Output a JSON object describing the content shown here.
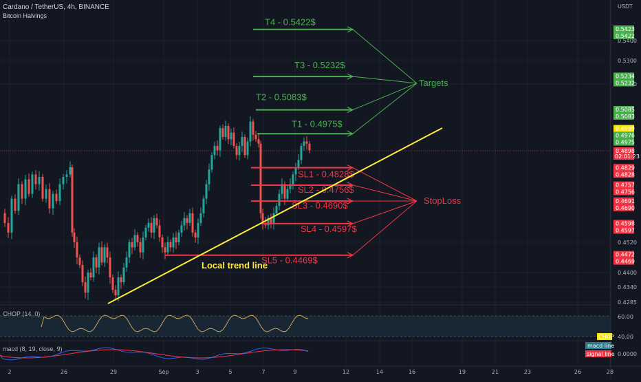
{
  "header": {
    "title": "Cardano / TetherUS, 4h, BINANCE",
    "indicator": "Bitcoin Halvings",
    "currency": "USDT"
  },
  "chart_data": {
    "type": "candlestick",
    "symbol": "Cardano / TetherUS",
    "timeframe": "4h",
    "exchange": "BINANCE",
    "x_ticks": [
      "2",
      "26",
      "29",
      "Sep",
      "3",
      "5",
      "7",
      "9",
      "12",
      "14",
      "16",
      "19",
      "21",
      "23",
      "26",
      "28"
    ],
    "y_ticks": [
      "0.5400",
      "0.5300",
      "0.5200",
      "0.4520",
      "0.4400",
      "0.4340",
      "0.4285"
    ],
    "ylim": [
      0.4285,
      0.547
    ],
    "price_tags": [
      {
        "label": "0.5423",
        "value": 0.5423,
        "color": "#4caf50"
      },
      {
        "label": "0.5422",
        "value": 0.5422,
        "color": "#4caf50"
      },
      {
        "label": "0.5234",
        "value": 0.5234,
        "color": "#4caf50"
      },
      {
        "label": "0.5232",
        "value": 0.5232,
        "color": "#4caf50"
      },
      {
        "label": "0.5085",
        "value": 0.5085,
        "color": "#4caf50"
      },
      {
        "label": "0.5083",
        "value": 0.5083,
        "color": "#4caf50"
      },
      {
        "label": "0.4999",
        "value": 0.4999,
        "color": "#f7e600"
      },
      {
        "label": "0.4976",
        "value": 0.4976,
        "color": "#4caf50"
      },
      {
        "label": "0.4975",
        "value": 0.4975,
        "color": "#4caf50"
      },
      {
        "label": "0.4898",
        "value": 0.4898,
        "color": "#f23645",
        "sub": "02:01:23"
      },
      {
        "label": "0.4829",
        "value": 0.4829,
        "color": "#f23645"
      },
      {
        "label": "0.4828",
        "value": 0.4828,
        "color": "#f23645"
      },
      {
        "label": "0.4757",
        "value": 0.4757,
        "color": "#f23645"
      },
      {
        "label": "0.4756",
        "value": 0.4756,
        "color": "#f23645"
      },
      {
        "label": "0.4691",
        "value": 0.4691,
        "color": "#f23645"
      },
      {
        "label": "0.4690",
        "value": 0.469,
        "color": "#f23645"
      },
      {
        "label": "0.4598",
        "value": 0.4598,
        "color": "#f23645"
      },
      {
        "label": "0.4597",
        "value": 0.4597,
        "color": "#f23645"
      },
      {
        "label": "0.4472",
        "value": 0.4472,
        "color": "#f23645"
      },
      {
        "label": "0.4469",
        "value": 0.4469,
        "color": "#f23645"
      }
    ],
    "levels": [
      {
        "label": "T4 - 0.5422$",
        "value": 0.5422,
        "kind": "target"
      },
      {
        "label": "T3 - 0.5232$",
        "value": 0.5232,
        "kind": "target"
      },
      {
        "label": "T2 - 0.5083$",
        "value": 0.5083,
        "kind": "target"
      },
      {
        "label": "T1 - 0.4975$",
        "value": 0.4975,
        "kind": "target"
      },
      {
        "label": "SL1 - 0.4828$",
        "value": 0.4828,
        "kind": "stoploss"
      },
      {
        "label": "SL2 - 0.4756$",
        "value": 0.4756,
        "kind": "stoploss"
      },
      {
        "label": "SL3 - 0.4690$",
        "value": 0.469,
        "kind": "stoploss"
      },
      {
        "label": "SL4 - 0.4597$",
        "value": 0.4597,
        "kind": "stoploss"
      },
      {
        "label": "SL5 - 0.4469$",
        "value": 0.4469,
        "kind": "stoploss"
      }
    ],
    "annotations": {
      "targets": "Targets",
      "stoploss": "StopLoss",
      "trend_line": "Local trend line"
    },
    "chop": {
      "label": "CHOP (14, 0)",
      "ticks": [
        "60.00",
        "40.00"
      ],
      "tag": "CHOP"
    },
    "macd": {
      "label": "macd (8, 19, close, 9)",
      "tick": "0.0000",
      "macd_tag": "macd line",
      "signal_tag": "signal line"
    },
    "colors": {
      "target": "#4caf50",
      "stoploss": "#f23645",
      "trend": "#ffeb3b",
      "up_candle": "#26a69a",
      "down_candle": "#ef5350",
      "background": "#131722"
    }
  }
}
